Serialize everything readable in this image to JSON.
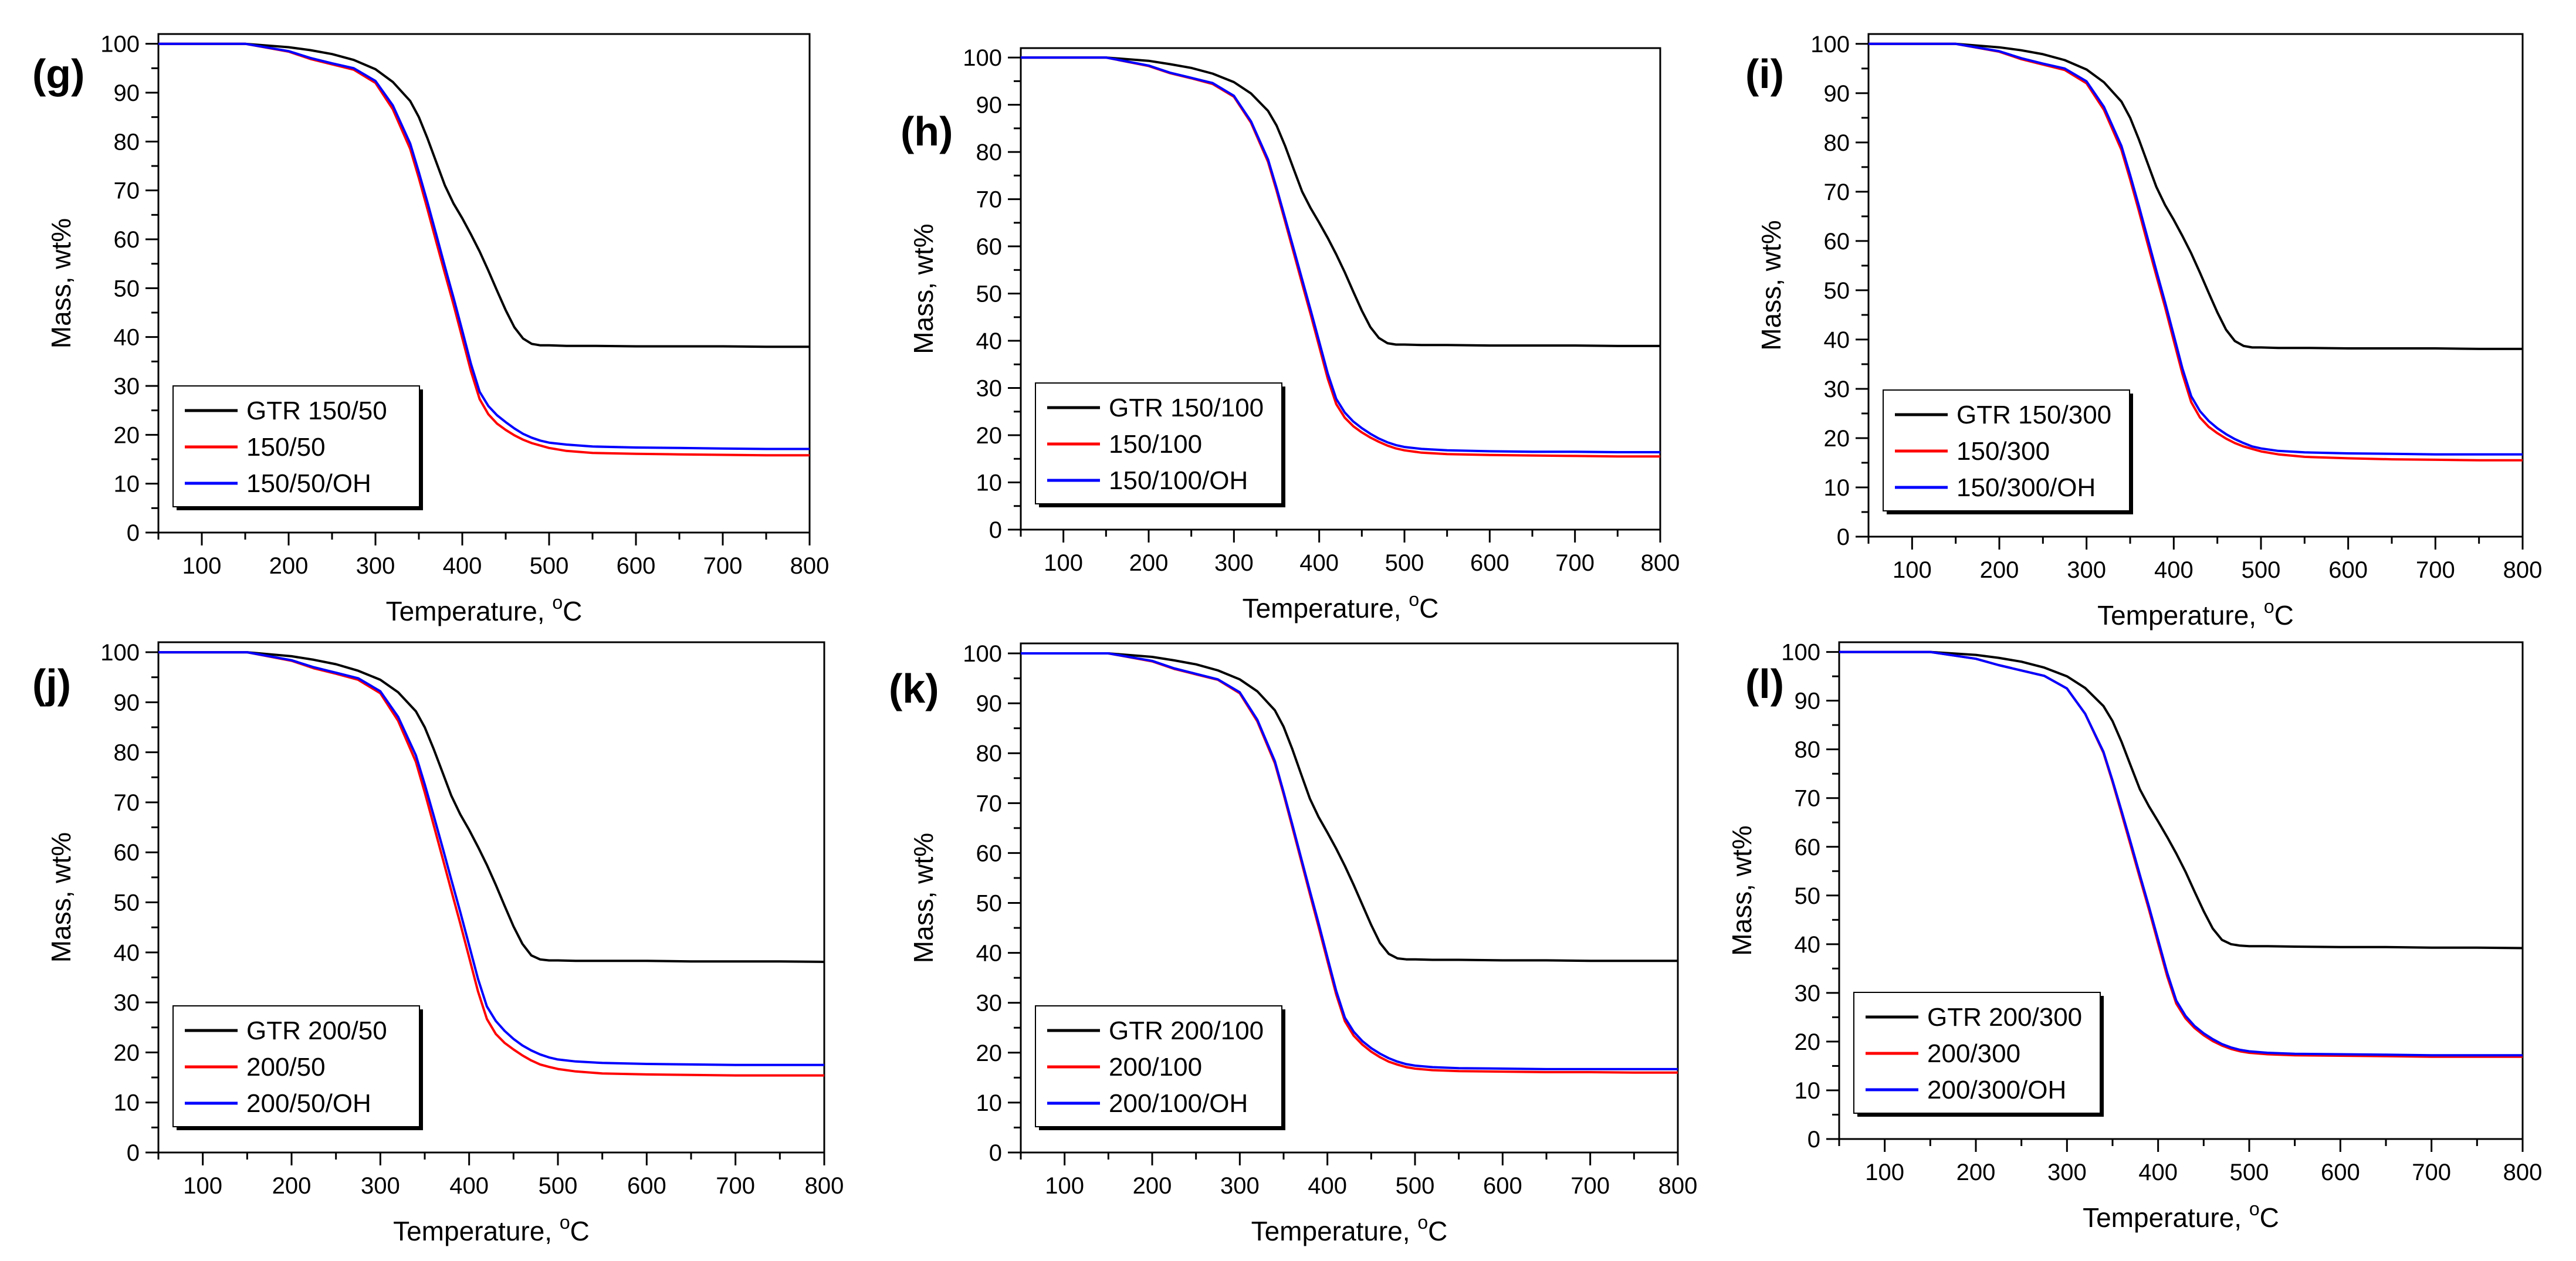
{
  "figure": {
    "panel_count": 6
  },
  "colors": {
    "axis": "#000000",
    "gtr": "#000000",
    "modified": "#ff0000",
    "modified_oh": "#0000ff"
  },
  "chart_data": [
    {
      "panel_label": "(g)",
      "type": "line",
      "xlabel": "Temperature, °C",
      "ylabel": "Mass, wt%",
      "xlim": [
        50,
        800
      ],
      "ylim": [
        0,
        102
      ],
      "x_ticks": [
        100,
        200,
        300,
        400,
        500,
        600,
        700,
        800
      ],
      "y_ticks": [
        0,
        10,
        20,
        30,
        40,
        50,
        60,
        70,
        80,
        90,
        100
      ],
      "legend_position": "bottom-left",
      "x": [
        50,
        100,
        150,
        200,
        225,
        250,
        275,
        300,
        320,
        340,
        350,
        360,
        370,
        380,
        390,
        400,
        410,
        420,
        430,
        440,
        450,
        460,
        470,
        480,
        490,
        500,
        520,
        550,
        600,
        650,
        700,
        750,
        800
      ],
      "series": [
        {
          "name": "GTR 150/50",
          "color": "#000000",
          "values": [
            100.0,
            100.0,
            100.0,
            99.3,
            98.7,
            97.9,
            96.7,
            94.8,
            92.2,
            88.3,
            85.0,
            80.6,
            75.8,
            71.0,
            67.3,
            64.3,
            61.0,
            57.5,
            53.6,
            49.5,
            45.5,
            42.0,
            39.7,
            38.6,
            38.3,
            38.3,
            38.2,
            38.2,
            38.1,
            38.1,
            38.1,
            38.0,
            38.0
          ]
        },
        {
          "name": "150/50",
          "color": "#ff0000",
          "values": [
            100.0,
            100.0,
            100.0,
            98.4,
            96.9,
            95.8,
            94.7,
            92.0,
            86.6,
            78.5,
            72.5,
            66.1,
            59.5,
            53.0,
            46.6,
            39.8,
            33.0,
            27.3,
            24.2,
            22.3,
            21.0,
            19.9,
            19.0,
            18.3,
            17.8,
            17.3,
            16.7,
            16.3,
            16.1,
            16.0,
            15.9,
            15.8,
            15.8
          ]
        },
        {
          "name": "150/50/OH",
          "color": "#0000ff",
          "values": [
            100.0,
            100.0,
            100.0,
            98.5,
            97.1,
            96.0,
            95.0,
            92.4,
            87.4,
            79.6,
            73.7,
            67.5,
            61.0,
            54.4,
            48.0,
            41.3,
            34.5,
            28.8,
            25.9,
            24.0,
            22.6,
            21.3,
            20.2,
            19.4,
            18.8,
            18.4,
            18.0,
            17.6,
            17.4,
            17.3,
            17.2,
            17.1,
            17.1
          ]
        }
      ]
    },
    {
      "panel_label": "(h)",
      "type": "line",
      "xlabel": "Temperature, °C",
      "ylabel": "Mass, wt%",
      "xlim": [
        50,
        800
      ],
      "ylim": [
        0,
        102
      ],
      "x_ticks": [
        100,
        200,
        300,
        400,
        500,
        600,
        700,
        800
      ],
      "y_ticks": [
        0,
        10,
        20,
        30,
        40,
        50,
        60,
        70,
        80,
        90,
        100
      ],
      "legend_position": "bottom-left",
      "x": [
        50,
        100,
        150,
        200,
        225,
        250,
        275,
        300,
        320,
        340,
        350,
        360,
        370,
        380,
        390,
        400,
        410,
        420,
        430,
        440,
        450,
        460,
        470,
        480,
        490,
        500,
        520,
        550,
        600,
        650,
        700,
        750,
        800
      ],
      "series": [
        {
          "name": "GTR 150/100",
          "color": "#000000",
          "values": [
            100.0,
            100.0,
            100.0,
            99.3,
            98.6,
            97.8,
            96.6,
            94.8,
            92.4,
            88.7,
            85.6,
            81.3,
            76.4,
            71.6,
            68.1,
            65.0,
            61.8,
            58.3,
            54.5,
            50.4,
            46.4,
            42.9,
            40.6,
            39.5,
            39.2,
            39.2,
            39.1,
            39.1,
            39.0,
            39.0,
            39.0,
            38.9,
            38.9
          ]
        },
        {
          "name": "150/100",
          "color": "#ff0000",
          "values": [
            100.0,
            100.0,
            100.0,
            98.2,
            96.7,
            95.6,
            94.4,
            91.7,
            86.2,
            77.9,
            71.8,
            65.3,
            58.7,
            52.1,
            45.6,
            38.8,
            32.0,
            26.6,
            23.7,
            21.9,
            20.6,
            19.5,
            18.6,
            17.8,
            17.2,
            16.8,
            16.3,
            16.0,
            15.8,
            15.7,
            15.6,
            15.5,
            15.5
          ]
        },
        {
          "name": "150/100/OH",
          "color": "#0000ff",
          "values": [
            100.0,
            100.0,
            100.0,
            98.3,
            96.8,
            95.7,
            94.6,
            91.9,
            86.5,
            78.4,
            72.4,
            66.0,
            59.5,
            53.0,
            46.5,
            39.8,
            33.1,
            27.7,
            24.8,
            22.9,
            21.5,
            20.3,
            19.3,
            18.5,
            17.9,
            17.5,
            17.1,
            16.8,
            16.6,
            16.5,
            16.5,
            16.4,
            16.4
          ]
        }
      ]
    },
    {
      "panel_label": "(i)",
      "type": "line",
      "xlabel": "Temperature, °C",
      "ylabel": "Mass, wt%",
      "xlim": [
        50,
        800
      ],
      "ylim": [
        0,
        102
      ],
      "x_ticks": [
        100,
        200,
        300,
        400,
        500,
        600,
        700,
        800
      ],
      "y_ticks": [
        0,
        10,
        20,
        30,
        40,
        50,
        60,
        70,
        80,
        90,
        100
      ],
      "legend_position": "bottom-left",
      "x": [
        50,
        100,
        150,
        200,
        225,
        250,
        275,
        300,
        320,
        340,
        350,
        360,
        370,
        380,
        390,
        400,
        410,
        420,
        430,
        440,
        450,
        460,
        470,
        480,
        490,
        500,
        520,
        550,
        600,
        650,
        700,
        750,
        800
      ],
      "series": [
        {
          "name": "GTR 150/300",
          "color": "#000000",
          "values": [
            100.0,
            100.0,
            100.0,
            99.3,
            98.7,
            97.9,
            96.7,
            94.8,
            92.2,
            88.3,
            85.0,
            80.6,
            75.8,
            71.0,
            67.3,
            64.3,
            61.0,
            57.5,
            53.6,
            49.5,
            45.5,
            42.0,
            39.7,
            38.7,
            38.4,
            38.4,
            38.3,
            38.3,
            38.2,
            38.2,
            38.2,
            38.1,
            38.1
          ]
        },
        {
          "name": "150/300",
          "color": "#ff0000",
          "values": [
            100.0,
            100.0,
            100.0,
            98.4,
            96.9,
            95.8,
            94.7,
            92.0,
            86.6,
            78.5,
            72.5,
            66.1,
            59.5,
            53.0,
            46.6,
            39.8,
            33.0,
            27.3,
            24.2,
            22.3,
            21.0,
            19.9,
            19.0,
            18.3,
            17.8,
            17.3,
            16.7,
            16.2,
            15.9,
            15.7,
            15.6,
            15.5,
            15.5
          ]
        },
        {
          "name": "150/300/OH",
          "color": "#0000ff",
          "values": [
            100.0,
            100.0,
            100.0,
            98.5,
            97.1,
            96.0,
            95.0,
            92.4,
            87.2,
            79.3,
            73.4,
            67.1,
            60.6,
            54.0,
            47.6,
            40.9,
            34.1,
            28.5,
            25.5,
            23.5,
            22.0,
            20.8,
            19.8,
            19.0,
            18.3,
            17.9,
            17.4,
            17.1,
            16.9,
            16.8,
            16.7,
            16.7,
            16.7
          ]
        }
      ]
    },
    {
      "panel_label": "(j)",
      "type": "line",
      "xlabel": "Temperature, °C",
      "ylabel": "Mass, wt%",
      "xlim": [
        50,
        800
      ],
      "ylim": [
        0,
        102
      ],
      "x_ticks": [
        100,
        200,
        300,
        400,
        500,
        600,
        700,
        800
      ],
      "y_ticks": [
        0,
        10,
        20,
        30,
        40,
        50,
        60,
        70,
        80,
        90,
        100
      ],
      "legend_position": "bottom-left",
      "x": [
        50,
        100,
        150,
        200,
        225,
        250,
        275,
        300,
        320,
        340,
        350,
        360,
        370,
        380,
        390,
        400,
        410,
        420,
        430,
        440,
        450,
        460,
        470,
        480,
        490,
        500,
        520,
        550,
        600,
        650,
        700,
        750,
        800
      ],
      "series": [
        {
          "name": "GTR 200/50",
          "color": "#000000",
          "values": [
            100.0,
            100.0,
            100.0,
            99.2,
            98.5,
            97.6,
            96.3,
            94.5,
            92.0,
            88.2,
            85.0,
            80.7,
            76.0,
            71.3,
            67.6,
            64.5,
            61.1,
            57.5,
            53.5,
            49.3,
            45.2,
            41.7,
            39.4,
            38.6,
            38.4,
            38.4,
            38.3,
            38.3,
            38.3,
            38.2,
            38.2,
            38.2,
            38.1
          ]
        },
        {
          "name": "200/50",
          "color": "#ff0000",
          "values": [
            100.0,
            100.0,
            100.0,
            98.3,
            96.8,
            95.7,
            94.5,
            91.8,
            86.3,
            78.1,
            72.0,
            65.5,
            58.9,
            52.3,
            45.8,
            39.0,
            32.2,
            26.7,
            23.7,
            21.9,
            20.6,
            19.4,
            18.4,
            17.6,
            17.1,
            16.7,
            16.2,
            15.8,
            15.6,
            15.5,
            15.4,
            15.4,
            15.4
          ]
        },
        {
          "name": "200/50/OH",
          "color": "#0000ff",
          "values": [
            100.0,
            100.0,
            100.0,
            98.4,
            97.0,
            95.9,
            94.8,
            92.2,
            87.1,
            79.4,
            73.6,
            67.4,
            61.0,
            54.5,
            48.1,
            41.4,
            34.7,
            29.2,
            26.3,
            24.3,
            22.7,
            21.4,
            20.4,
            19.6,
            19.0,
            18.6,
            18.2,
            17.9,
            17.7,
            17.6,
            17.5,
            17.5,
            17.5
          ]
        }
      ]
    },
    {
      "panel_label": "(k)",
      "type": "line",
      "xlabel": "Temperature, °C",
      "ylabel": "Mass, wt%",
      "xlim": [
        50,
        800
      ],
      "ylim": [
        0,
        102
      ],
      "x_ticks": [
        100,
        200,
        300,
        400,
        500,
        600,
        700,
        800
      ],
      "y_ticks": [
        0,
        10,
        20,
        30,
        40,
        50,
        60,
        70,
        80,
        90,
        100
      ],
      "legend_position": "bottom-left",
      "x": [
        50,
        100,
        150,
        200,
        225,
        250,
        275,
        300,
        320,
        340,
        350,
        360,
        370,
        380,
        390,
        400,
        410,
        420,
        430,
        440,
        450,
        460,
        470,
        480,
        490,
        500,
        520,
        550,
        600,
        650,
        700,
        750,
        800
      ],
      "series": [
        {
          "name": "GTR 200/100",
          "color": "#000000",
          "values": [
            100.0,
            100.0,
            100.0,
            99.3,
            98.6,
            97.8,
            96.6,
            94.8,
            92.4,
            88.6,
            85.3,
            80.8,
            75.8,
            70.9,
            67.2,
            64.1,
            60.9,
            57.4,
            53.6,
            49.6,
            45.6,
            42.0,
            39.8,
            38.9,
            38.7,
            38.7,
            38.6,
            38.6,
            38.5,
            38.5,
            38.4,
            38.4,
            38.4
          ]
        },
        {
          "name": "200/100",
          "color": "#ff0000",
          "values": [
            100.0,
            100.0,
            100.0,
            98.4,
            96.9,
            95.8,
            94.7,
            92.0,
            86.4,
            78.0,
            71.8,
            65.2,
            58.5,
            51.8,
            45.2,
            38.4,
            31.7,
            26.3,
            23.4,
            21.6,
            20.2,
            19.1,
            18.2,
            17.6,
            17.1,
            16.8,
            16.5,
            16.3,
            16.2,
            16.1,
            16.1,
            16.0,
            16.0
          ]
        },
        {
          "name": "200/100/OH",
          "color": "#0000ff",
          "values": [
            100.0,
            100.0,
            100.0,
            98.5,
            97.0,
            95.9,
            94.8,
            92.2,
            86.7,
            78.4,
            72.2,
            65.7,
            59.0,
            52.4,
            45.9,
            39.1,
            32.4,
            27.0,
            24.2,
            22.3,
            20.9,
            19.8,
            18.9,
            18.2,
            17.7,
            17.4,
            17.1,
            16.9,
            16.8,
            16.7,
            16.7,
            16.7,
            16.7
          ]
        }
      ]
    },
    {
      "panel_label": "(l)",
      "type": "line",
      "xlabel": "Temperature, °C",
      "ylabel": "Mass, wt%",
      "xlim": [
        50,
        800
      ],
      "ylim": [
        0,
        102
      ],
      "x_ticks": [
        100,
        200,
        300,
        400,
        500,
        600,
        700,
        800
      ],
      "y_ticks": [
        0,
        10,
        20,
        30,
        40,
        50,
        60,
        70,
        80,
        90,
        100
      ],
      "legend_position": "bottom-left",
      "x": [
        50,
        100,
        150,
        200,
        225,
        250,
        275,
        300,
        320,
        340,
        350,
        360,
        370,
        380,
        390,
        400,
        410,
        420,
        430,
        440,
        450,
        460,
        470,
        480,
        490,
        500,
        520,
        550,
        600,
        650,
        700,
        750,
        800
      ],
      "series": [
        {
          "name": "GTR 200/300",
          "color": "#000000",
          "values": [
            100.0,
            100.0,
            100.0,
            99.4,
            98.8,
            98.0,
            96.8,
            95.0,
            92.6,
            88.9,
            85.8,
            81.5,
            76.6,
            71.8,
            68.3,
            65.2,
            62.0,
            58.6,
            54.9,
            50.8,
            46.8,
            43.2,
            40.9,
            40.0,
            39.7,
            39.6,
            39.6,
            39.5,
            39.4,
            39.4,
            39.3,
            39.3,
            39.2
          ]
        },
        {
          "name": "200/300",
          "color": "#ff0000",
          "values": [
            100.0,
            100.0,
            100.0,
            98.6,
            97.3,
            96.2,
            95.1,
            92.5,
            87.3,
            79.3,
            73.3,
            66.8,
            60.2,
            53.6,
            47.1,
            40.2,
            33.4,
            27.8,
            24.8,
            22.8,
            21.3,
            20.1,
            19.2,
            18.5,
            18.0,
            17.7,
            17.4,
            17.2,
            17.1,
            17.0,
            16.9,
            16.9,
            16.9
          ]
        },
        {
          "name": "200/300/OH",
          "color": "#0000ff",
          "values": [
            100.0,
            100.0,
            100.0,
            98.6,
            97.3,
            96.2,
            95.1,
            92.5,
            87.3,
            79.5,
            73.6,
            67.3,
            60.8,
            54.2,
            47.7,
            40.9,
            34.1,
            28.4,
            25.3,
            23.2,
            21.7,
            20.5,
            19.5,
            18.8,
            18.3,
            18.0,
            17.7,
            17.5,
            17.4,
            17.3,
            17.2,
            17.2,
            17.2
          ]
        }
      ]
    }
  ]
}
